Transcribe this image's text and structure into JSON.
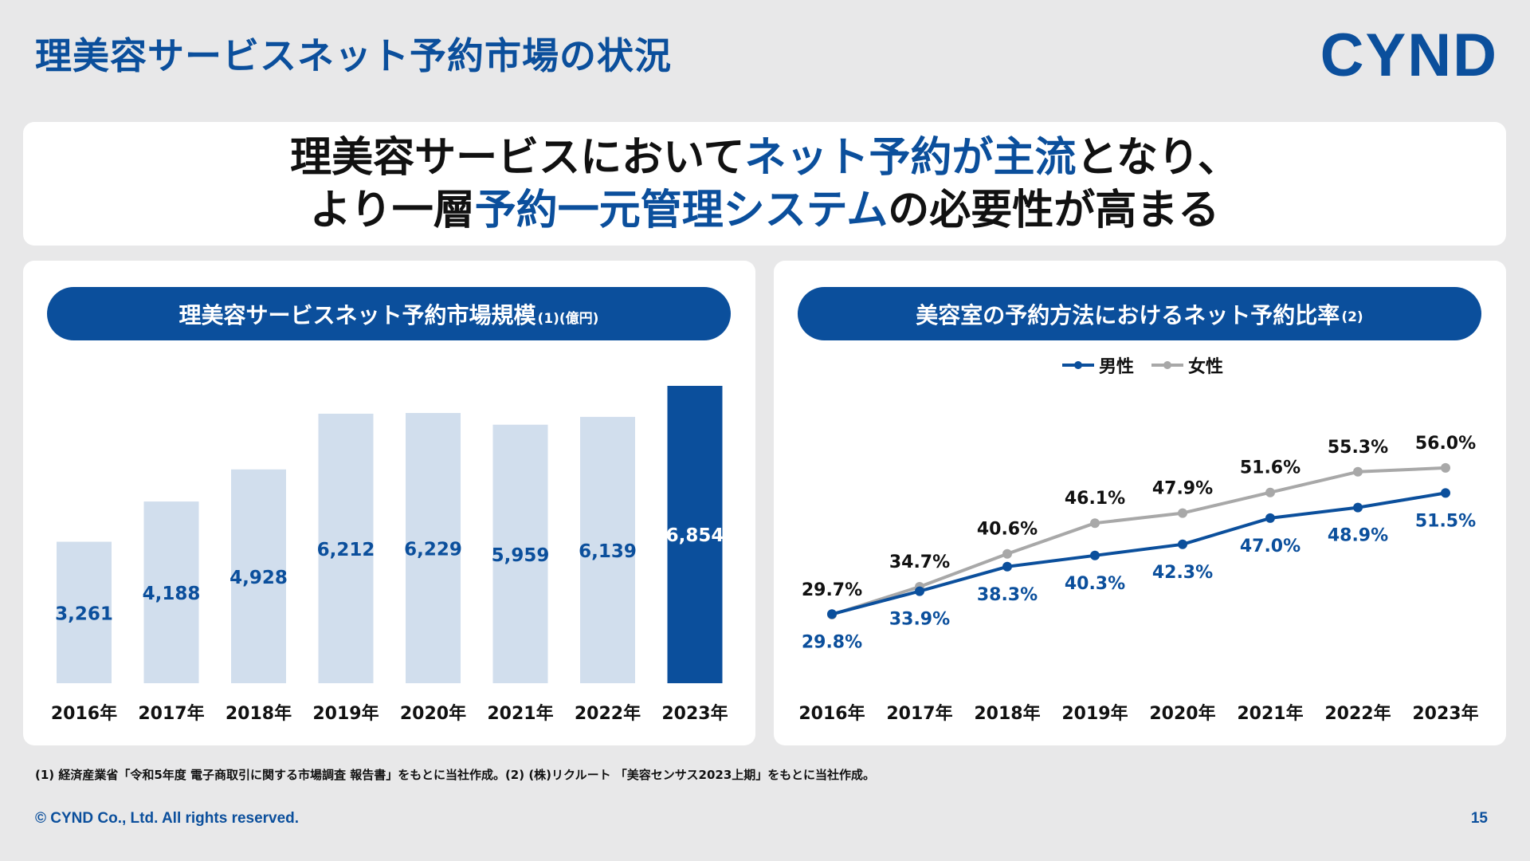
{
  "page": {
    "title": "理美容サービスネット予約市場の状況",
    "logo": "CYND",
    "headline": {
      "line1_a": "理美容サービスにおいて",
      "line1_b": "ネット予約が主流",
      "line1_c": "となり、",
      "line2_a": "より一層",
      "line2_b": "予約一元管理システム",
      "line2_c": "の必要性が高まる"
    },
    "footnote": "(1) 経済産業省「令和5年度 電子商取引に関する市場調査 報告書」をもとに当社作成。(2) (株)リクルート 「美容センサス2023上期」をもとに当社作成。",
    "copyright": "© CYND Co., Ltd. All rights reserved.",
    "page_number": "15"
  },
  "colors": {
    "brand": "#0b4f9c",
    "bar_light": "#d1deed",
    "line_gray": "#a8a8a8",
    "background": "#e8e8e9"
  },
  "left_panel": {
    "title": "理美容サービスネット予約市場規模",
    "title_note": "(1)(億円)"
  },
  "right_panel": {
    "title": "美容室の予約方法におけるネット予約比率",
    "title_note": "(2)"
  },
  "chart_data": [
    {
      "type": "bar",
      "categories": [
        "2016年",
        "2017年",
        "2018年",
        "2019年",
        "2020年",
        "2021年",
        "2022年",
        "2023年"
      ],
      "values": [
        3261,
        4188,
        4928,
        6212,
        6229,
        5959,
        6139,
        6854
      ],
      "value_labels": [
        "3,261",
        "4,188",
        "4,928",
        "6,212",
        "6,229",
        "5,959",
        "6,139",
        "6,854"
      ],
      "highlight_index": 7,
      "ylim": [
        0,
        6854
      ]
    },
    {
      "type": "line",
      "categories": [
        "2016年",
        "2017年",
        "2018年",
        "2019年",
        "2020年",
        "2021年",
        "2022年",
        "2023年"
      ],
      "series": [
        {
          "name": "男性",
          "values": [
            29.8,
            33.9,
            38.3,
            40.3,
            42.3,
            47.0,
            48.9,
            51.5
          ],
          "labels": [
            "29.8%",
            "33.9%",
            "38.3%",
            "40.3%",
            "42.3%",
            "47.0%",
            "48.9%",
            "51.5%"
          ],
          "color": "#0b4f9c"
        },
        {
          "name": "女性",
          "values": [
            29.7,
            34.7,
            40.6,
            46.1,
            47.9,
            51.6,
            55.3,
            56.0
          ],
          "labels": [
            "29.7%",
            "34.7%",
            "40.6%",
            "46.1%",
            "47.9%",
            "51.6%",
            "55.3%",
            "56.0%"
          ],
          "color": "#a8a8a8"
        }
      ],
      "legend": "top-center"
    }
  ]
}
